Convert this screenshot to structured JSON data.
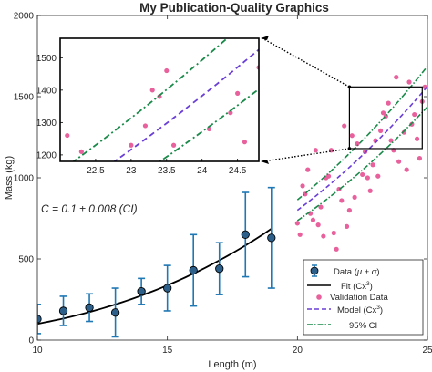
{
  "chart_data": {
    "type": "scatter",
    "title": "My Publication-Quality Graphics",
    "xlabel": "Length (m)",
    "ylabel": "Mass (kg)",
    "xlim": [
      10,
      25
    ],
    "ylim": [
      0,
      2000
    ],
    "xticks": [
      10,
      15,
      20,
      25
    ],
    "yticks": [
      0,
      500,
      1000,
      1500,
      2000
    ],
    "grid": false,
    "annotation": "C = 0.1 ± 0.008 (CI)",
    "fit_exponent": 3,
    "fit_coefficient": 0.1,
    "ci_coefficients": [
      0.092,
      0.108
    ],
    "series": [
      {
        "name": "Data (μ ± σ)",
        "kind": "errorbar",
        "color": "#1f77b4",
        "x": [
          10,
          11,
          12,
          13,
          14,
          15,
          16,
          17,
          18,
          19
        ],
        "y": [
          130,
          180,
          200,
          170,
          300,
          320,
          430,
          440,
          650,
          630
        ],
        "err": [
          90,
          90,
          85,
          150,
          80,
          140,
          220,
          160,
          260,
          310
        ]
      },
      {
        "name": "Fit (Cx³)",
        "kind": "line",
        "color": "#000000",
        "x_range": [
          10,
          19
        ]
      },
      {
        "name": "Validation Data",
        "kind": "scatter",
        "color": "#e8609c",
        "x": [
          20.1,
          20.3,
          20.6,
          20.9,
          21.2,
          21.5,
          21.9,
          22.2,
          22.6,
          23.0,
          23.4,
          23.9,
          24.3,
          24.8,
          20.4,
          21.0,
          21.6,
          22.3,
          23.1,
          23.7,
          24.1,
          24.7,
          20.2,
          20.8,
          21.3,
          22.0,
          22.8,
          23.5,
          24.4,
          24.9,
          21.8,
          22.5,
          23.2,
          20.5,
          21.1,
          21.7,
          22.9,
          23.8,
          24.6,
          20.0,
          20.7,
          21.4,
          22.1,
          23.3,
          24.2,
          24.5,
          22.7,
          23.6
        ],
        "y": [
          650,
          900,
          740,
          820,
          1010,
          560,
          700,
          880,
          1160,
          1230,
          1380,
          1100,
          1590,
          1470,
          1050,
          640,
          930,
          1210,
          1010,
          1170,
          1280,
          1120,
          950,
          710,
          1170,
          800,
          920,
          1460,
          1330,
          1560,
          1320,
          1020,
          1290,
          780,
          1000,
          860,
          1080,
          1620,
          1240,
          720,
          1170,
          660,
          1260,
          1400,
          1050,
          1390,
          1000,
          1230
        ]
      },
      {
        "name": "Model (Cx³)",
        "kind": "line",
        "color": "#6a3fd6",
        "dash": "dashed",
        "x_range": [
          20,
          25
        ]
      },
      {
        "name": "95% CI",
        "kind": "line",
        "color": "#1a8a4a",
        "dash": "dashdot",
        "x_range": [
          20,
          25
        ]
      }
    ],
    "legend": {
      "position": "bottom-right",
      "entries": [
        "Data (μ ± σ)",
        "Fit (Cx³)",
        "Validation Data",
        "Model (Cx³)",
        "95% CI"
      ]
    },
    "inset": {
      "xlim": [
        22,
        24.8
      ],
      "ylim": [
        1180,
        1560
      ],
      "xticks": [
        22.5,
        23,
        23.5,
        24,
        24.5
      ],
      "yticks": [
        1200,
        1300,
        1400,
        1500
      ],
      "source_rect": {
        "x": [
          22,
          24.8
        ],
        "y": [
          1180,
          1560
        ]
      }
    }
  },
  "labels": {
    "legend_data_main": "Data (",
    "legend_data_sym": "μ ± σ",
    "legend_data_close": ")",
    "legend_fit_main": "Fit (Cx",
    "legend_fit_sup": "3",
    "legend_fit_close": ")",
    "legend_validation": "Validation Data",
    "legend_model_main": "Model (Cx",
    "legend_model_sup": "3",
    "legend_model_close": ")",
    "legend_ci": "95% CI"
  }
}
